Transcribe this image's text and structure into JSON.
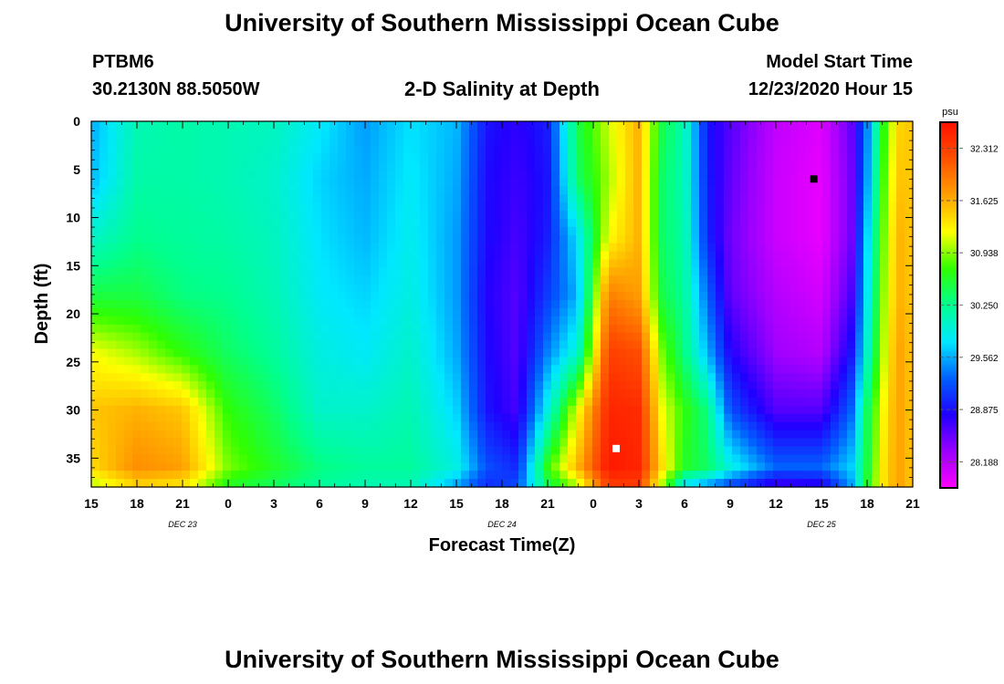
{
  "header": {
    "title": "University of Southern Mississippi Ocean Cube",
    "station": "PTBM6",
    "coords": "30.2130N 88.5050W",
    "chart_title": "2-D Salinity at Depth",
    "model_label": "Model Start Time",
    "model_time": "12/23/2020 Hour 15"
  },
  "footer": {
    "title": "University of Southern Mississippi Ocean Cube"
  },
  "colors": {
    "scale": [
      "#ff00ff",
      "#9b00ff",
      "#2000ff",
      "#0060ff",
      "#00e8ff",
      "#00ff90",
      "#30ff00",
      "#ffff00",
      "#ffa000",
      "#ff5000",
      "#ff1000"
    ]
  },
  "chart_data": {
    "type": "heatmap",
    "title": "2-D Salinity at Depth",
    "xlabel": "Forecast Time(Z)",
    "ylabel": "Depth (ft)",
    "x_tick_labels": [
      "15",
      "18",
      "21",
      "0",
      "3",
      "6",
      "9",
      "12",
      "15",
      "18",
      "21",
      "0",
      "3",
      "6",
      "9",
      "12",
      "15",
      "18",
      "21"
    ],
    "date_labels": [
      {
        "tick_index": 2,
        "label": "DEC 23"
      },
      {
        "tick_index": 9,
        "label": "DEC 24"
      },
      {
        "tick_index": 16,
        "label": "DEC 25"
      }
    ],
    "x_range_hours": [
      0,
      54
    ],
    "y_ticks": [
      0,
      5,
      10,
      15,
      20,
      25,
      30,
      35
    ],
    "ylim": [
      0,
      38
    ],
    "colorbar": {
      "unit": "psu",
      "min": 27.844,
      "max": 32.656,
      "tick_values": [
        28.188,
        28.875,
        29.562,
        30.25,
        30.938,
        31.625,
        32.312
      ],
      "tick_labels": [
        "28.188",
        "28.875",
        "29.562",
        "30.250",
        "30.938",
        "31.625",
        "32.312"
      ]
    },
    "markers": [
      {
        "label": "max",
        "x_hour": 34.5,
        "depth": 34,
        "color": "#ffffff"
      },
      {
        "label": "min",
        "x_hour": 47.5,
        "depth": 6,
        "color": "#000000"
      }
    ],
    "depth_levels": [
      0,
      6,
      12,
      18,
      24,
      30,
      36,
      38
    ],
    "salinity_profiles": [
      {
        "hour": 0,
        "values": [
          29.56,
          29.6,
          30.0,
          30.5,
          31.2,
          31.5,
          31.4,
          31.0
        ]
      },
      {
        "hour": 3,
        "values": [
          30.1,
          30.15,
          30.25,
          30.5,
          31.0,
          31.6,
          31.8,
          31.4
        ]
      },
      {
        "hour": 6,
        "values": [
          30.15,
          30.15,
          30.2,
          30.3,
          30.7,
          31.5,
          31.7,
          31.3
        ]
      },
      {
        "hour": 9,
        "values": [
          30.1,
          30.1,
          30.15,
          30.25,
          30.4,
          30.7,
          30.9,
          30.6
        ]
      },
      {
        "hour": 12,
        "values": [
          30.05,
          30.0,
          30.05,
          30.1,
          30.2,
          30.4,
          30.6,
          30.4
        ]
      },
      {
        "hour": 15,
        "values": [
          29.8,
          29.7,
          29.75,
          29.8,
          29.9,
          30.0,
          30.3,
          30.2
        ]
      },
      {
        "hour": 18,
        "values": [
          29.5,
          29.55,
          29.6,
          29.7,
          29.8,
          30.0,
          30.2,
          30.1
        ]
      },
      {
        "hour": 21,
        "values": [
          29.75,
          29.8,
          29.85,
          29.9,
          30.0,
          30.1,
          30.2,
          30.1
        ]
      },
      {
        "hour": 24,
        "values": [
          29.6,
          29.55,
          29.5,
          29.5,
          29.55,
          29.7,
          29.9,
          29.5
        ]
      },
      {
        "hour": 26,
        "values": [
          28.9,
          28.85,
          28.85,
          28.8,
          28.85,
          28.9,
          29.2,
          29.0
        ]
      },
      {
        "hour": 28,
        "values": [
          28.75,
          28.7,
          28.65,
          28.6,
          28.6,
          28.65,
          29.0,
          29.2
        ]
      },
      {
        "hour": 30,
        "values": [
          28.95,
          28.9,
          28.95,
          29.1,
          29.4,
          29.9,
          30.7,
          30.4
        ]
      },
      {
        "hour": 32,
        "values": [
          30.5,
          30.4,
          29.8,
          29.6,
          30.0,
          31.2,
          31.6,
          31.0
        ]
      },
      {
        "hour": 34,
        "values": [
          31.1,
          31.0,
          31.2,
          31.9,
          32.3,
          32.5,
          32.6,
          32.3
        ]
      },
      {
        "hour": 36,
        "values": [
          31.6,
          31.6,
          31.6,
          31.7,
          32.2,
          32.45,
          32.5,
          32.3
        ]
      },
      {
        "hour": 37.5,
        "values": [
          30.5,
          30.4,
          30.4,
          30.5,
          30.9,
          31.2,
          31.4,
          31.0
        ]
      },
      {
        "hour": 39,
        "values": [
          30.1,
          30.1,
          30.15,
          30.2,
          30.3,
          30.7,
          30.6,
          29.7
        ]
      },
      {
        "hour": 40.5,
        "values": [
          28.9,
          28.95,
          29.0,
          29.3,
          29.6,
          30.3,
          30.4,
          29.4
        ]
      },
      {
        "hour": 42,
        "values": [
          28.6,
          28.55,
          28.5,
          28.55,
          28.8,
          29.2,
          29.9,
          29.1
        ]
      },
      {
        "hour": 45,
        "values": [
          28.15,
          28.1,
          28.1,
          28.2,
          28.3,
          28.6,
          29.3,
          28.6
        ]
      },
      {
        "hour": 48,
        "values": [
          28.0,
          27.95,
          27.95,
          28.05,
          28.2,
          28.6,
          29.3,
          28.7
        ]
      },
      {
        "hour": 50,
        "values": [
          28.55,
          28.5,
          28.5,
          28.65,
          28.9,
          29.3,
          29.7,
          29.5
        ]
      },
      {
        "hour": 51,
        "values": [
          29.4,
          29.5,
          29.7,
          29.8,
          30.0,
          30.4,
          30.5,
          30.6
        ]
      },
      {
        "hour": 52,
        "values": [
          30.6,
          30.7,
          30.8,
          30.9,
          31.0,
          31.2,
          31.3,
          31.3
        ]
      },
      {
        "hour": 53,
        "values": [
          31.4,
          31.5,
          31.6,
          31.6,
          31.7,
          31.7,
          31.7,
          31.7
        ]
      },
      {
        "hour": 54,
        "values": [
          31.5,
          31.5,
          31.5,
          31.5,
          31.5,
          31.5,
          31.5,
          31.5
        ]
      }
    ]
  }
}
